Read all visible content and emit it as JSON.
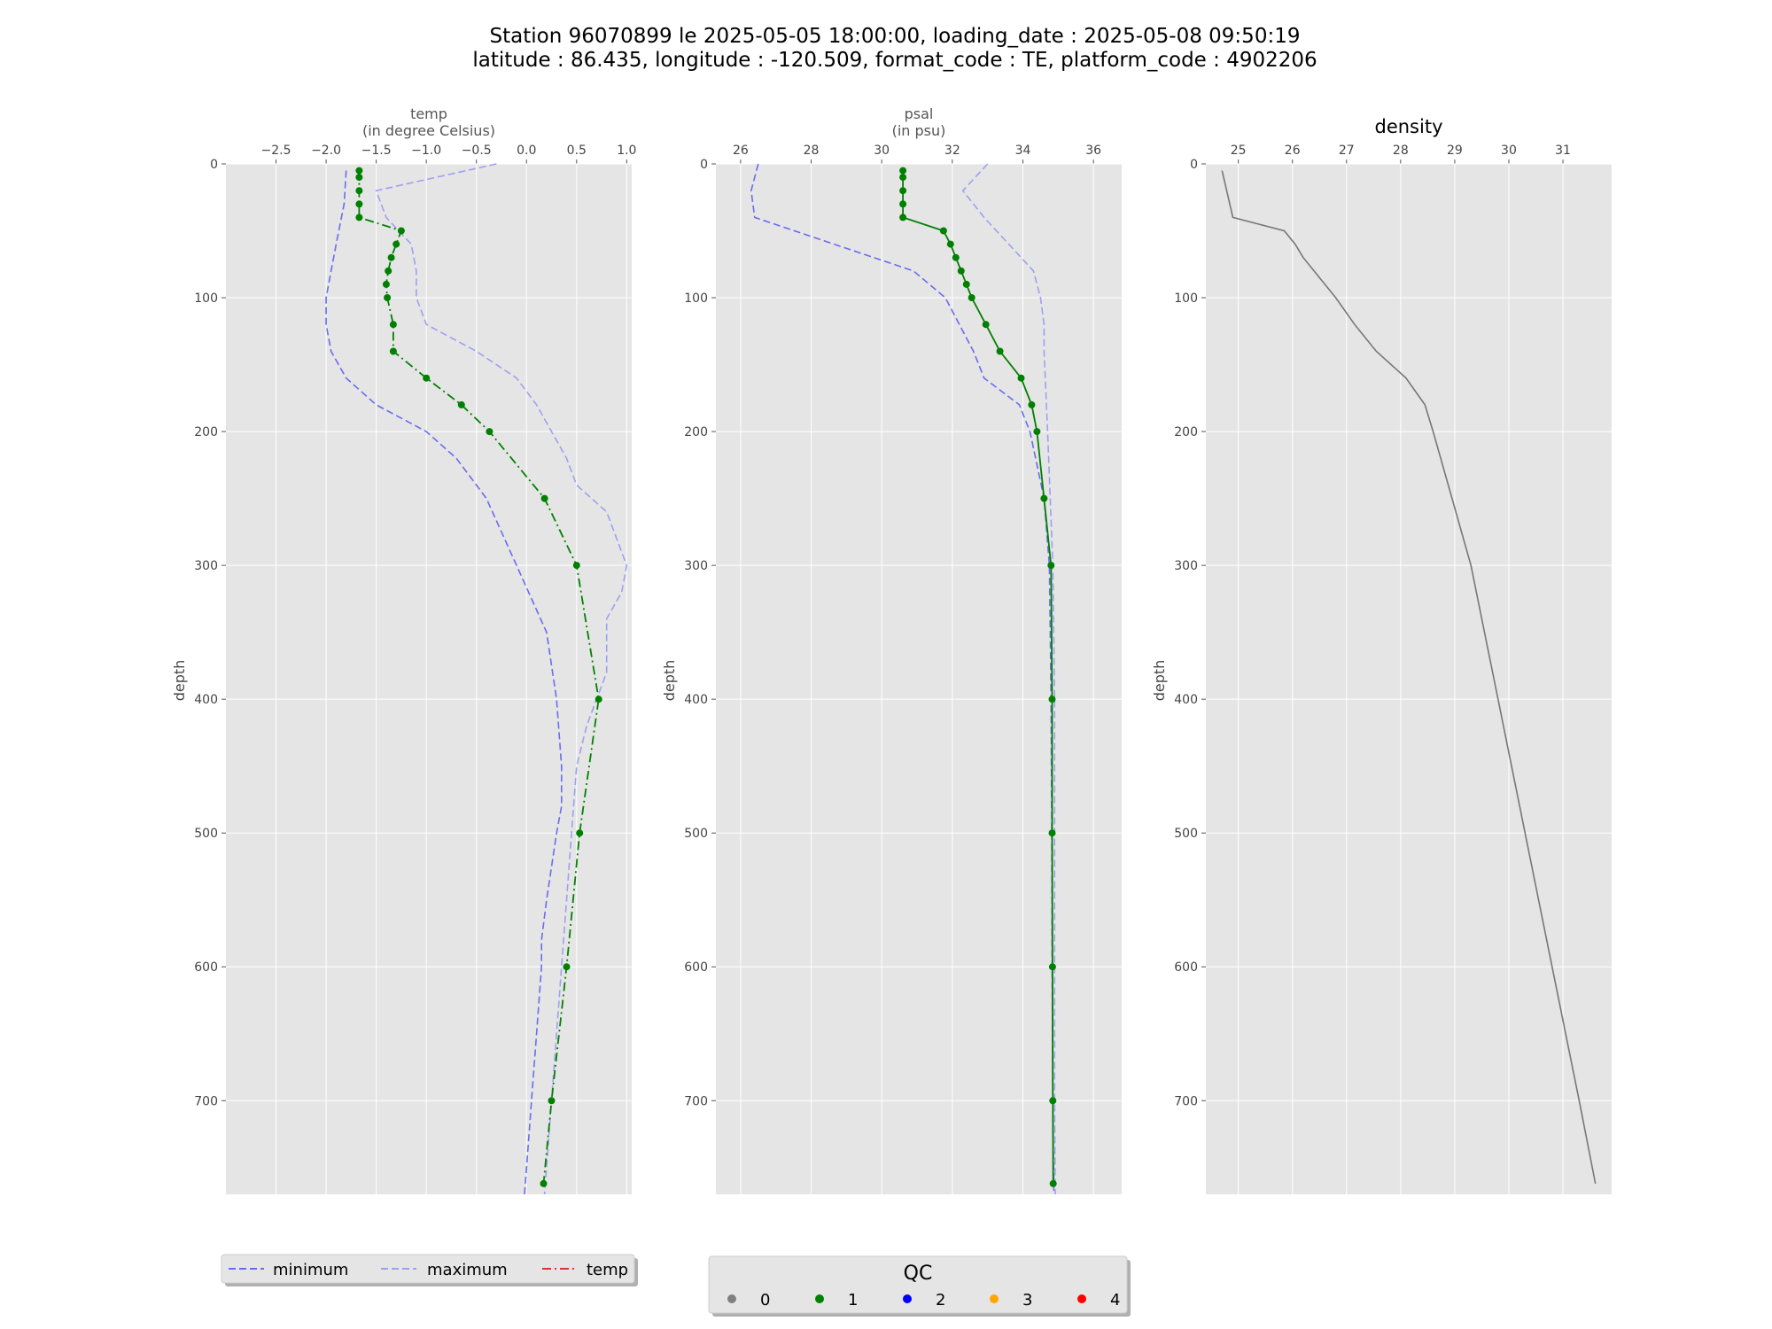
{
  "suptitle": {
    "line1": "Station 96070899 le 2025-05-05 18:00:00, loading_date : 2025-05-08 09:50:19",
    "line2": "latitude : 86.435, longitude : -120.509, format_code : TE, platform_code : 4902206"
  },
  "colors": {
    "panel_bg": "#e5e5e5",
    "grid": "#ffffff",
    "minimum": "#6b6bf0",
    "maximum": "#9f9ff2",
    "profile": "#008000",
    "density": "#777777",
    "legend_temp": "#e03030"
  },
  "chart_data": [
    {
      "type": "line",
      "title": "temp",
      "subtitle": "(in degree Celsius)",
      "xlabel": "",
      "ylabel": "depth",
      "xlim": [
        -3.0,
        1.05
      ],
      "ylim": [
        770,
        0
      ],
      "xticks": [
        -2.5,
        -2.0,
        -1.5,
        -1.0,
        -0.5,
        0.0,
        0.5,
        1.0
      ],
      "xtick_labels": [
        "−2.5",
        "−2.0",
        "−1.5",
        "−1.0",
        "−0.5",
        "0.0",
        "0.5",
        "1.0"
      ],
      "yticks": [
        0,
        100,
        200,
        300,
        400,
        500,
        600,
        700
      ],
      "yticks_labels": [
        "0",
        "100",
        "200",
        "300",
        "400",
        "500",
        "600",
        "700"
      ],
      "grid": true,
      "series": [
        {
          "name": "minimum",
          "style": "dashed",
          "color": "#6b6bf0",
          "depth": [
            5,
            30,
            60,
            80,
            100,
            120,
            140,
            160,
            180,
            200,
            220,
            250,
            300,
            350,
            400,
            450,
            480,
            500,
            550,
            580,
            600,
            650,
            700,
            750,
            770
          ],
          "values": [
            -1.8,
            -1.82,
            -1.9,
            -1.95,
            -2.0,
            -2.0,
            -1.95,
            -1.8,
            -1.5,
            -1.0,
            -0.7,
            -0.4,
            -0.1,
            0.2,
            0.3,
            0.35,
            0.35,
            0.3,
            0.2,
            0.15,
            0.15,
            0.1,
            0.05,
            0.0,
            -0.02
          ]
        },
        {
          "name": "maximum",
          "style": "dashed",
          "color": "#9f9ff2",
          "depth": [
            0,
            20,
            40,
            60,
            80,
            100,
            120,
            140,
            160,
            180,
            200,
            220,
            240,
            260,
            280,
            300,
            320,
            340,
            380,
            420,
            450,
            500,
            550,
            600,
            650,
            700,
            750,
            770
          ],
          "values": [
            -0.3,
            -1.5,
            -1.4,
            -1.15,
            -1.1,
            -1.1,
            -1.0,
            -0.5,
            -0.1,
            0.1,
            0.25,
            0.4,
            0.5,
            0.8,
            0.9,
            1.0,
            0.95,
            0.8,
            0.8,
            0.6,
            0.5,
            0.45,
            0.4,
            0.35,
            0.3,
            0.25,
            0.2,
            0.18
          ]
        },
        {
          "name": "temp",
          "style": "dashdot",
          "color": "#008000",
          "qc": 1,
          "depth": [
            5,
            10,
            20,
            30,
            40,
            50,
            60,
            70,
            80,
            90,
            100,
            120,
            140,
            160,
            180,
            200,
            250,
            300,
            400,
            500,
            600,
            700,
            762
          ],
          "values": [
            -1.67,
            -1.67,
            -1.67,
            -1.67,
            -1.67,
            -1.25,
            -1.3,
            -1.35,
            -1.38,
            -1.4,
            -1.39,
            -1.33,
            -1.33,
            -1.0,
            -0.65,
            -0.37,
            0.18,
            0.5,
            0.72,
            0.53,
            0.4,
            0.25,
            0.17
          ]
        }
      ]
    },
    {
      "type": "line",
      "title": "psal",
      "subtitle": "(in psu)",
      "xlabel": "",
      "ylabel": "depth",
      "xlim": [
        25.3,
        36.8
      ],
      "ylim": [
        770,
        0
      ],
      "xticks": [
        26,
        28,
        30,
        32,
        34,
        36
      ],
      "xtick_labels": [
        "26",
        "28",
        "30",
        "32",
        "34",
        "36"
      ],
      "yticks": [
        0,
        100,
        200,
        300,
        400,
        500,
        600,
        700
      ],
      "yticks_labels": [
        "0",
        "100",
        "200",
        "300",
        "400",
        "500",
        "600",
        "700"
      ],
      "grid": true,
      "series": [
        {
          "name": "minimum",
          "style": "dashed",
          "color": "#6b6bf0",
          "depth": [
            0,
            20,
            40,
            80,
            100,
            120,
            140,
            160,
            180,
            200,
            250,
            300,
            400,
            500,
            600,
            700,
            770
          ],
          "values": [
            26.5,
            26.3,
            26.4,
            30.9,
            31.8,
            32.2,
            32.6,
            32.9,
            33.9,
            34.2,
            34.6,
            34.75,
            34.8,
            34.82,
            34.83,
            34.85,
            34.88
          ]
        },
        {
          "name": "maximum",
          "style": "dashed",
          "color": "#9f9ff2",
          "depth": [
            0,
            20,
            40,
            60,
            80,
            100,
            120,
            140,
            200,
            300,
            400,
            500,
            600,
            700,
            770
          ],
          "values": [
            33.0,
            32.3,
            32.9,
            33.6,
            34.3,
            34.5,
            34.6,
            34.6,
            34.7,
            34.85,
            34.9,
            34.9,
            34.9,
            34.9,
            34.92
          ]
        },
        {
          "name": "psal",
          "style": "solid",
          "color": "#008000",
          "qc": 1,
          "depth": [
            5,
            10,
            20,
            30,
            40,
            50,
            60,
            70,
            80,
            90,
            100,
            120,
            140,
            160,
            180,
            200,
            250,
            300,
            400,
            500,
            600,
            700,
            762
          ],
          "values": [
            30.6,
            30.6,
            30.6,
            30.6,
            30.6,
            31.75,
            31.95,
            32.1,
            32.25,
            32.4,
            32.55,
            32.95,
            33.35,
            33.95,
            34.25,
            34.4,
            34.6,
            34.8,
            34.83,
            34.83,
            34.84,
            34.85,
            34.86
          ]
        }
      ]
    },
    {
      "type": "line",
      "title": "density",
      "subtitle": "",
      "xlabel": "",
      "ylabel": "depth",
      "xlim": [
        24.4,
        31.9
      ],
      "ylim": [
        770,
        0
      ],
      "xticks": [
        25,
        26,
        27,
        28,
        29,
        30,
        31
      ],
      "xtick_labels": [
        "25",
        "26",
        "27",
        "28",
        "29",
        "30",
        "31"
      ],
      "yticks": [
        0,
        100,
        200,
        300,
        400,
        500,
        600,
        700
      ],
      "yticks_labels": [
        "0",
        "100",
        "200",
        "300",
        "400",
        "500",
        "600",
        "700"
      ],
      "grid": true,
      "series": [
        {
          "name": "density",
          "style": "solid",
          "color": "#777777",
          "depth": [
            5,
            40,
            50,
            60,
            70,
            80,
            90,
            100,
            120,
            140,
            160,
            180,
            200,
            250,
            300,
            400,
            500,
            600,
            700,
            762
          ],
          "values": [
            24.7,
            24.9,
            25.85,
            26.05,
            26.2,
            26.4,
            26.6,
            26.8,
            27.15,
            27.55,
            28.1,
            28.45,
            28.6,
            28.95,
            29.3,
            29.8,
            30.3,
            30.8,
            31.3,
            31.6
          ]
        }
      ]
    }
  ],
  "legend_left": {
    "items": [
      {
        "label": "minimum",
        "style": "dashed",
        "color": "#6b6bf0"
      },
      {
        "label": "maximum",
        "style": "dashed",
        "color": "#9f9ff2"
      },
      {
        "label": "temp",
        "style": "dashdot",
        "color": "#e03030"
      }
    ]
  },
  "legend_qc": {
    "title": "QC",
    "items": [
      {
        "label": "0",
        "color": "#808080"
      },
      {
        "label": "1",
        "color": "#008000"
      },
      {
        "label": "2",
        "color": "#0000ff"
      },
      {
        "label": "3",
        "color": "#ffa500"
      },
      {
        "label": "4",
        "color": "#ff0000"
      }
    ]
  }
}
